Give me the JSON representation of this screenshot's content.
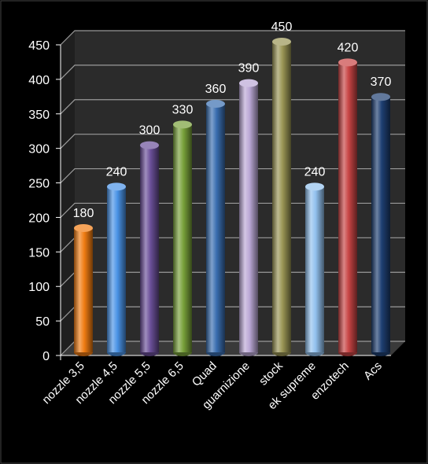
{
  "chart_data": {
    "type": "bar",
    "style": "3d-cylinder",
    "categories": [
      "nozzle 3,5",
      "nozzle 4,5",
      "nozzle 5,5",
      "nozzle 6,5",
      "Quad",
      "guarnizione",
      "stock",
      "ek supreme",
      "enzotech",
      "Acs"
    ],
    "values": [
      180,
      240,
      300,
      330,
      360,
      390,
      450,
      240,
      420,
      370
    ],
    "colors": [
      "#f07c12",
      "#4a93e6",
      "#6b4f99",
      "#78a03a",
      "#3a6eb0",
      "#bba8d6",
      "#9a9555",
      "#92c1ee",
      "#c84444",
      "#1e3f72"
    ],
    "ylim": [
      0,
      450
    ],
    "yticks": [
      0,
      50,
      100,
      150,
      200,
      250,
      300,
      350,
      400,
      450
    ],
    "grid": true,
    "legend": "none",
    "title": "",
    "xlabel": "",
    "ylabel": "",
    "background": "#000000",
    "wall_color": "#2b2b2b",
    "grid_color": "#9a9a9a",
    "text_color": "#ffffff"
  }
}
